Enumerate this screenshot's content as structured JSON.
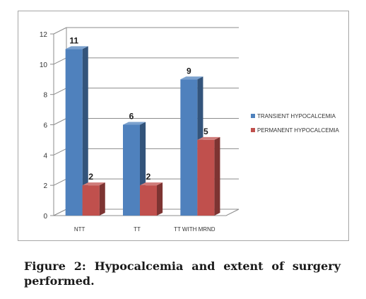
{
  "caption": "Figure 2: Hypocalcemia and extent of surgery performed.",
  "chart_data": {
    "type": "bar",
    "title": "",
    "xlabel": "",
    "ylabel": "",
    "categories": [
      "NTT",
      "TT",
      "TT WITH MRND"
    ],
    "series": [
      {
        "name": "TRANSIENT HYPOCALCEMIA",
        "values": [
          11,
          6,
          9
        ],
        "color": "#4f81bd"
      },
      {
        "name": "PERMANENT HYPOCALCEMIA",
        "values": [
          2,
          2,
          5
        ],
        "color": "#c0504d"
      }
    ],
    "ylim": [
      0,
      12
    ],
    "yticks": [
      0,
      2,
      4,
      6,
      8,
      10,
      12
    ],
    "grid": true,
    "style": "3d-column",
    "legend_position": "right",
    "data_labels": true
  }
}
